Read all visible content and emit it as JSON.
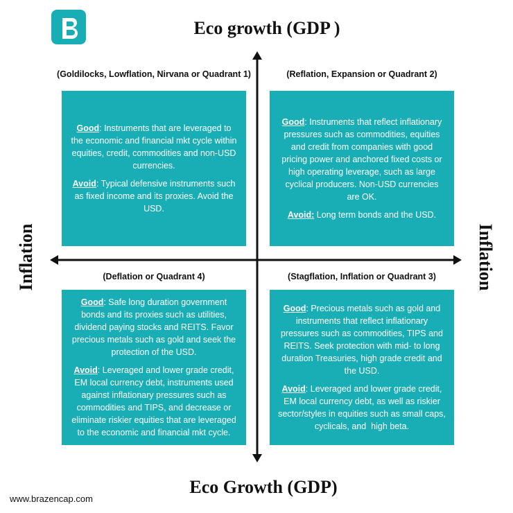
{
  "header": {
    "title": "Eco growth (GDP )",
    "bottom_title": "Eco Growth (GDP)",
    "left_label": "Inflation",
    "right_label": "Inflation",
    "url": "www.brazencap.com"
  },
  "quadrants": [
    {
      "header": "(Goldilocks, Lowflation, Nirvana or Quadrant 1)",
      "good_label": "Good",
      "good_text": ": Instruments that are leveraged to the economic and financial mkt cycle within equities, credit, commodities and non-USD currencies.",
      "avoid_label": "Avoid",
      "avoid_text": ": Typical defensive instruments such as fixed income and its proxies. Avoid the USD."
    },
    {
      "header": "(Reflation, Expansion or Quadrant 2)",
      "good_label": "Good",
      "good_text": ": Instruments that reflect inflationary pressures such as commodities, equities and credit from companies with good pricing power and anchored fixed costs or high operating leverage, such as large cyclical producers. Non-USD currencies are OK.",
      "avoid_label": "Avoid:",
      "avoid_text": " Long term bonds and the USD."
    },
    {
      "header": "(Deflation or Quadrant 4)",
      "good_label": "Good",
      "good_text": ": Safe long duration government bonds and its proxies such as utilities, dividend paying stocks and REITS. Favor precious metals such as gold and seek the protection of the USD.",
      "avoid_label": "Avoid",
      "avoid_text": ": Leveraged and lower grade credit, EM local currency debt, instruments used against inflationary pressures such as commodities and TIPS, and decrease or eliminate riskier equities that are leveraged to the economic and financial mkt cycle."
    },
    {
      "header": "(Stagflation, Inflation or Quadrant 3)",
      "good_label": "Good",
      "good_text": ": Precious metals such as gold and instruments that reflect inflationary pressures such as commodities, TIPS and REITS. Seek protection with mid- to long duration Treasuries, high grade credit and the USD.",
      "avoid_label": "Avoid",
      "avoid_text": ": Leveraged and lower grade credit, EM local currency debt, as well as riskier sector/styles in equities such as small caps, cyclicals, and  high beta."
    }
  ]
}
